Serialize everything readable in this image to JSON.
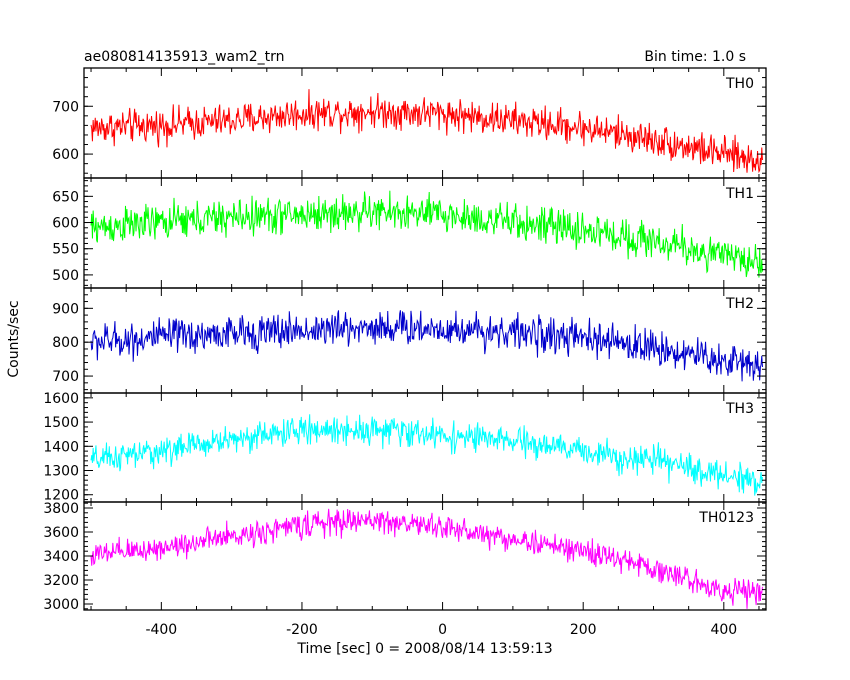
{
  "header": {
    "title": "ae080814135913_wam2_trn",
    "bin_time": "Bin time: 1.0 s"
  },
  "chart_data": {
    "type": "line",
    "xlabel": "Time [sec] 0 = 2008/08/14 13:59:13",
    "ylabel": "Counts/sec",
    "xlim": [
      -510,
      460
    ],
    "xticks": [
      -400,
      -200,
      0,
      200,
      400
    ],
    "x_range_data": [
      -500,
      455
    ],
    "bin_time_s": 1.0,
    "panels": [
      {
        "name": "TH0",
        "color": "#ff0000",
        "ylim": [
          550,
          780
        ],
        "yticks": [
          600,
          700
        ],
        "trend": {
          "x": [
            -500,
            -400,
            -300,
            -200,
            -100,
            0,
            100,
            200,
            300,
            350,
            400,
            455
          ],
          "y": [
            655,
            660,
            670,
            685,
            690,
            685,
            670,
            655,
            630,
            615,
            600,
            585
          ]
        },
        "noise_amplitude": 30
      },
      {
        "name": "TH1",
        "color": "#00ff00",
        "ylim": [
          475,
          685
        ],
        "yticks": [
          500,
          550,
          600,
          650
        ],
        "trend": {
          "x": [
            -500,
            -400,
            -300,
            -200,
            -100,
            0,
            100,
            200,
            300,
            350,
            400,
            455
          ],
          "y": [
            590,
            600,
            610,
            615,
            620,
            615,
            600,
            585,
            565,
            550,
            535,
            525
          ]
        },
        "noise_amplitude": 30
      },
      {
        "name": "TH2",
        "color": "#0000cc",
        "ylim": [
          650,
          960
        ],
        "yticks": [
          700,
          800,
          900
        ],
        "trend": {
          "x": [
            -500,
            -400,
            -300,
            -200,
            -100,
            0,
            100,
            200,
            300,
            350,
            400,
            455
          ],
          "y": [
            800,
            815,
            825,
            835,
            845,
            840,
            830,
            810,
            785,
            765,
            745,
            735
          ]
        },
        "noise_amplitude": 45
      },
      {
        "name": "TH3",
        "color": "#00ffff",
        "ylim": [
          1170,
          1620
        ],
        "yticks": [
          1200,
          1300,
          1400,
          1500,
          1600
        ],
        "trend": {
          "x": [
            -500,
            -400,
            -300,
            -200,
            -100,
            0,
            100,
            200,
            300,
            350,
            400,
            455
          ],
          "y": [
            1340,
            1380,
            1430,
            1465,
            1470,
            1445,
            1420,
            1380,
            1340,
            1310,
            1280,
            1260
          ]
        },
        "noise_amplitude": 50
      },
      {
        "name": "TH0123",
        "color": "#ff00ff",
        "ylim": [
          2950,
          3850
        ],
        "yticks": [
          3000,
          3200,
          3400,
          3600,
          3800
        ],
        "trend": {
          "x": [
            -500,
            -400,
            -300,
            -200,
            -100,
            0,
            100,
            200,
            300,
            350,
            400,
            455
          ],
          "y": [
            3400,
            3470,
            3560,
            3660,
            3700,
            3640,
            3540,
            3440,
            3300,
            3200,
            3120,
            3080
          ]
        },
        "noise_amplitude": 90
      }
    ]
  }
}
